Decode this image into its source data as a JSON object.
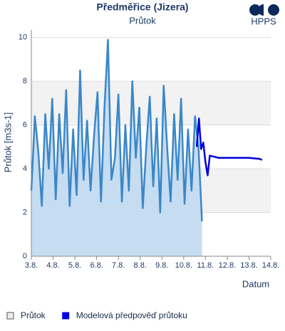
{
  "chart_data": {
    "type": "line",
    "title": "Předměřice (Jizera)",
    "subtitle": "Průtok",
    "logo": "HPPS",
    "y_label": "Průtok [m3s-1]",
    "x_label": "Datum",
    "xlim": [
      3,
      14
    ],
    "xticks": [
      {
        "value": 3,
        "label": "3.8."
      },
      {
        "value": 4,
        "label": "4.8."
      },
      {
        "value": 5,
        "label": "5.8."
      },
      {
        "value": 6,
        "label": "6.8."
      },
      {
        "value": 7,
        "label": "7.8."
      },
      {
        "value": 8,
        "label": "8.8."
      },
      {
        "value": 9,
        "label": "9.8."
      },
      {
        "value": 10,
        "label": "10.8."
      },
      {
        "value": 11,
        "label": "11.8."
      },
      {
        "value": 12,
        "label": "12.8."
      },
      {
        "value": 13,
        "label": "13.8."
      },
      {
        "value": 14,
        "label": "14.8."
      }
    ],
    "ylim": [
      0,
      10.35
    ],
    "yticks": [
      0,
      2,
      4,
      6,
      8,
      10
    ],
    "grid": true,
    "series": [
      {
        "name": "Průtok",
        "color": "#3a87c8",
        "fill": "#c6dcf1",
        "area": true,
        "x": [
          3,
          3.16,
          3.32,
          3.48,
          3.64,
          3.8,
          3.96,
          4.12,
          4.28,
          4.44,
          4.6,
          4.76,
          4.92,
          5.08,
          5.24,
          5.4,
          5.56,
          5.72,
          5.88,
          6.04,
          6.2,
          6.36,
          6.52,
          6.68,
          6.84,
          7,
          7.16,
          7.32,
          7.48,
          7.64,
          7.8,
          7.96,
          8.12,
          8.28,
          8.44,
          8.6,
          8.76,
          8.92,
          9.08,
          9.24,
          9.4,
          9.56,
          9.72,
          9.88,
          10.04,
          10.2,
          10.36,
          10.52,
          10.68,
          10.84
        ],
        "values": [
          3,
          6.4,
          4.8,
          2.3,
          6.5,
          4,
          7.2,
          2.6,
          6.5,
          3.8,
          7.6,
          2.3,
          5.8,
          2.8,
          8.5,
          3.5,
          6.2,
          3,
          5.5,
          7.5,
          2.5,
          6.8,
          9.9,
          3.5,
          4.5,
          7.4,
          2.5,
          6,
          3,
          8,
          4.5,
          6.8,
          2.2,
          5,
          7.3,
          3.2,
          6.3,
          2,
          7.8,
          5,
          2.5,
          6.5,
          3.5,
          7.2,
          2.4,
          5.8,
          3,
          6.4,
          5,
          1.6
        ]
      },
      {
        "name": "Modelová předpověď průtoku",
        "color": "#0000dd",
        "area": false,
        "x": [
          10.6,
          10.7,
          10.8,
          10.9,
          11,
          11.1,
          11.2,
          11.4,
          11.6,
          12,
          12.5,
          13,
          13.5,
          13.6
        ],
        "values": [
          5,
          6.3,
          4.9,
          5.2,
          4.3,
          3.7,
          4.6,
          4.55,
          4.5,
          4.5,
          4.5,
          4.5,
          4.45,
          4.4
        ]
      }
    ]
  }
}
